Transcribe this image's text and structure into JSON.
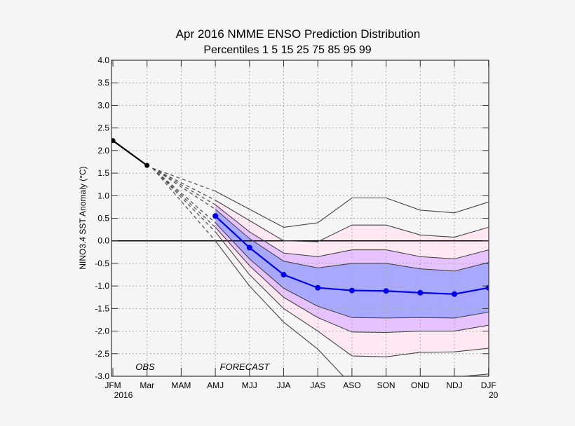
{
  "chart_data": {
    "type": "area",
    "title": "Apr 2016 NMME ENSO Prediction Distribution",
    "subtitle": "Percentiles 1 5 15 25 75 85 95 99",
    "ylabel": "NINO3.4 SST Anomaly (°C)",
    "xlabel": "",
    "ylim": [
      -3.0,
      4.0
    ],
    "yticks": [
      "4.0",
      "3.5",
      "3.0",
      "2.5",
      "2.0",
      "1.5",
      "1.0",
      "0.5",
      "0.0",
      "-0.5",
      "-1.0",
      "-1.5",
      "-2.0",
      "-2.5",
      "-3.0"
    ],
    "categories": [
      "JFM",
      "Mar",
      "MAM",
      "AMJ",
      "MJJ",
      "JJA",
      "JAS",
      "ASO",
      "SON",
      "OND",
      "NDJ",
      "DJF"
    ],
    "year_labels": {
      "start": "2016",
      "end": "20"
    },
    "annotations": {
      "obs": "OBS",
      "forecast": "FORECAST"
    },
    "grid": true,
    "observed": {
      "categories": [
        "JFM",
        "Mar"
      ],
      "values": [
        2.22,
        1.67
      ],
      "color": "#000000"
    },
    "forecast_categories": [
      "AMJ",
      "MJJ",
      "JJA",
      "JAS",
      "ASO",
      "SON",
      "OND",
      "NDJ",
      "DJF"
    ],
    "percentiles": {
      "p1": [
        0.0,
        -1.0,
        -1.8,
        -2.4,
        -3.2,
        -3.3,
        -3.15,
        -3.02,
        -2.95
      ],
      "p5": [
        0.2,
        -0.75,
        -1.5,
        -2.0,
        -2.55,
        -2.57,
        -2.47,
        -2.46,
        -2.38
      ],
      "p15": [
        0.3,
        -0.55,
        -1.25,
        -1.7,
        -2.02,
        -2.03,
        -2.0,
        -2.0,
        -1.87
      ],
      "p25": [
        0.4,
        -0.4,
        -1.05,
        -1.45,
        -1.7,
        -1.71,
        -1.7,
        -1.71,
        -1.58
      ],
      "p75": [
        0.7,
        0.05,
        -0.45,
        -0.6,
        -0.5,
        -0.5,
        -0.62,
        -0.67,
        -0.48
      ],
      "p85": [
        0.8,
        0.2,
        -0.27,
        -0.35,
        -0.2,
        -0.2,
        -0.35,
        -0.4,
        -0.2
      ],
      "p95": [
        0.9,
        0.45,
        0.0,
        -0.02,
        0.35,
        0.35,
        0.13,
        0.08,
        0.3
      ],
      "p99": [
        1.1,
        0.7,
        0.3,
        0.4,
        0.95,
        0.95,
        0.68,
        0.62,
        0.86
      ]
    },
    "median": {
      "values": [
        0.55,
        -0.15,
        -0.75,
        -1.04,
        -1.1,
        -1.11,
        -1.15,
        -1.18,
        -1.04
      ],
      "color": "#0000ee"
    },
    "band_colors": {
      "p5_p95": "#ffe8f2",
      "p15_p85": "#e6c2ff",
      "p25_p75": "#a8a8ff"
    }
  }
}
